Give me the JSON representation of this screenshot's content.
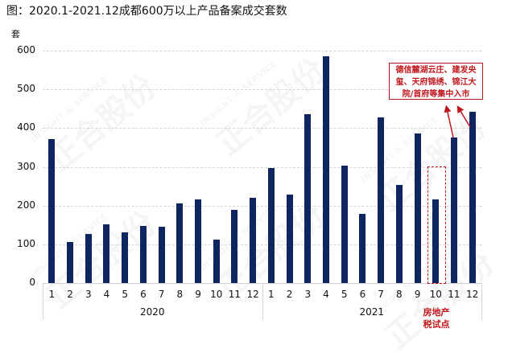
{
  "title": "图：2020.1-2021.12成都600万以上产品备案成交套数",
  "watermark": {
    "cn": "正合股份",
    "en": "INSIGHT & SERVICE"
  },
  "chart_data": {
    "type": "bar",
    "title": "图：2020.1-2021.12成都600万以上产品备案成交套数",
    "ylabel": "套",
    "xlabel": "",
    "ylim": [
      0,
      600
    ],
    "yticks": [
      0,
      100,
      200,
      300,
      400,
      500,
      600
    ],
    "grid": true,
    "legend": null,
    "bar_color": "#0f2560",
    "x_groups": [
      {
        "label": "2020",
        "months": [
          "1",
          "2",
          "3",
          "4",
          "5",
          "6",
          "7",
          "8",
          "9",
          "10",
          "11",
          "12"
        ]
      },
      {
        "label": "2021",
        "months": [
          "1",
          "2",
          "3",
          "4",
          "5",
          "6",
          "7",
          "8",
          "9",
          "10",
          "11",
          "12"
        ]
      }
    ],
    "categories": [
      "2020-1",
      "2020-2",
      "2020-3",
      "2020-4",
      "2020-5",
      "2020-6",
      "2020-7",
      "2020-8",
      "2020-9",
      "2020-10",
      "2020-11",
      "2020-12",
      "2021-1",
      "2021-2",
      "2021-3",
      "2021-4",
      "2021-5",
      "2021-6",
      "2021-7",
      "2021-8",
      "2021-9",
      "2021-10",
      "2021-11",
      "2021-12"
    ],
    "values": [
      371,
      106,
      127,
      152,
      131,
      147,
      145,
      205,
      216,
      112,
      188,
      220,
      297,
      228,
      436,
      585,
      303,
      178,
      427,
      253,
      386,
      216,
      375,
      442
    ],
    "annotations": [
      {
        "text": "德信麓湖云庄、建发央玺、天府锦绣、锦江大院/首府等集中入市",
        "points_to": [
          "2021-11",
          "2021-12"
        ],
        "color": "#c0161c"
      },
      {
        "text": "房地产税试点",
        "highlight": "2021-10",
        "color": "#c0161c"
      }
    ]
  },
  "labels": {
    "unit": "套",
    "note_lines": [
      "德信麓湖云庄、建发央",
      "玺、天府锦绣、锦江大",
      "院/首府等集中入市"
    ],
    "tax_lines": [
      "房地产",
      "税试点"
    ]
  }
}
